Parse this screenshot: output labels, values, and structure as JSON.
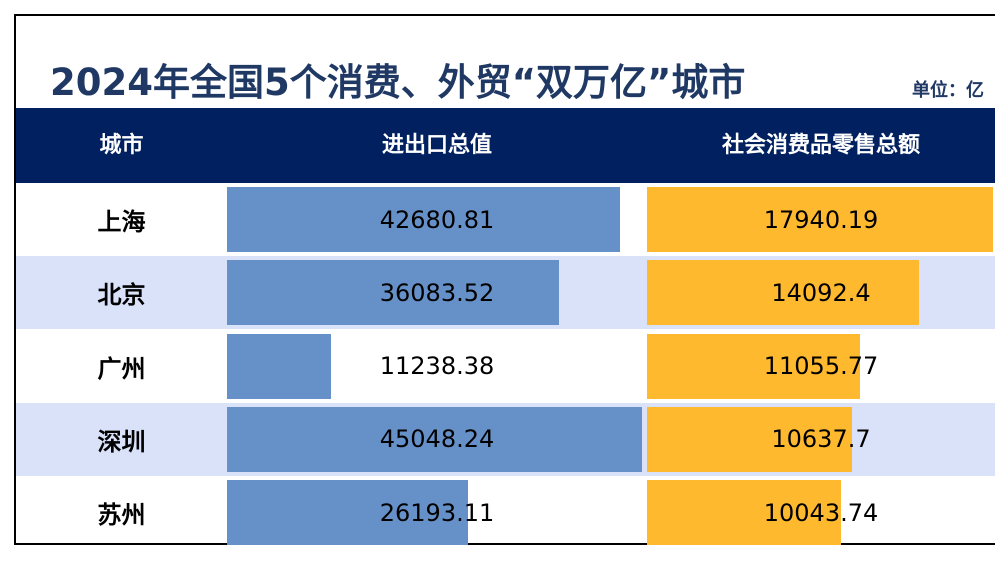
{
  "chart_data": {
    "type": "table",
    "title": "2024年全国5个消费、外贸“双万亿”城市",
    "unit_label": "单位：亿",
    "columns": [
      "城市",
      "进出口总值",
      "社会消费品零售总额"
    ],
    "rows": [
      {
        "city": "上海",
        "trade": "42680.81",
        "retail": "17940.19"
      },
      {
        "city": "北京",
        "trade": "36083.52",
        "retail": "14092.4"
      },
      {
        "city": "广州",
        "trade": "11238.38",
        "retail": "11055.77"
      },
      {
        "city": "深圳",
        "trade": "45048.24",
        "retail": "10637.7"
      },
      {
        "city": "苏州",
        "trade": "26193.11",
        "retail": "10043.74"
      }
    ],
    "colors": {
      "trade_bar": "#6690C8",
      "retail_bar": "#FFB92E",
      "header": "#002060",
      "alt_row": "#D9E2F9"
    }
  }
}
